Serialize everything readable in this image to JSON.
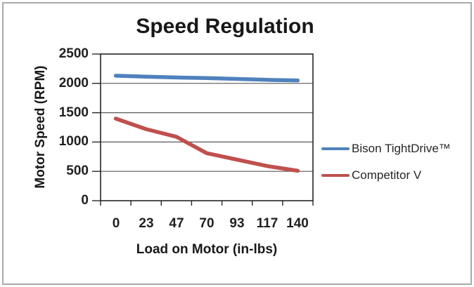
{
  "window": {
    "background_color": "#ffffff",
    "frame_border_color": "#a9a9a9"
  },
  "chart_data": {
    "type": "line",
    "title": "Speed Regulation",
    "xlabel": "Load on Motor (in-lbs)",
    "ylabel": "Motor Speed (RPM)",
    "x_type": "category",
    "categories": [
      0,
      23,
      47,
      70,
      93,
      117,
      140
    ],
    "series": [
      {
        "name": "Bison TightDrive™",
        "color": "#4f81bd",
        "values": [
          2130,
          2115,
          2100,
          2090,
          2075,
          2060,
          2050
        ]
      },
      {
        "name": "Competitor V",
        "color": "#c0504d",
        "values": [
          1400,
          1220,
          1090,
          810,
          700,
          590,
          510
        ]
      }
    ],
    "ylim": [
      0,
      2500
    ],
    "y_ticks": [
      0,
      500,
      1000,
      1500,
      2000,
      2500
    ],
    "grid": "horizontal",
    "grid_color": "#595959",
    "axis_color": "#262626",
    "legend_position": "right"
  }
}
